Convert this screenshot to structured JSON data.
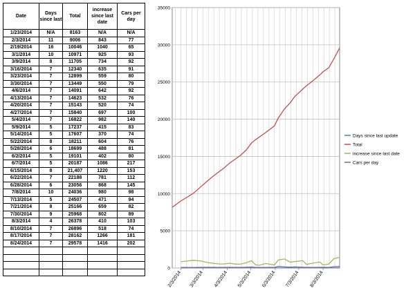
{
  "table": {
    "headers": [
      "Date",
      "Days since last",
      "Total",
      "increase since last date",
      "Cars per day"
    ],
    "rows": [
      [
        "1/23/2014",
        "N/A",
        "8163",
        "N/A",
        "N/A"
      ],
      [
        "2/3/2014",
        "11",
        "9006",
        "843",
        "77"
      ],
      [
        "2/19/2014",
        "16",
        "10046",
        "1040",
        "65"
      ],
      [
        "3/1/2014",
        "10",
        "10971",
        "925",
        "93"
      ],
      [
        "3/9/2014",
        "8",
        "11705",
        "734",
        "92"
      ],
      [
        "3/16/2014",
        "7",
        "12340",
        "635",
        "91"
      ],
      [
        "3/23/2014",
        "7",
        "12899",
        "559",
        "80"
      ],
      [
        "3/30/2014",
        "7",
        "13449",
        "550",
        "79"
      ],
      [
        "4/6/2014",
        "7",
        "14091",
        "642",
        "92"
      ],
      [
        "4/13/2014",
        "7",
        "14623",
        "532",
        "76"
      ],
      [
        "4/20/2014",
        "7",
        "15143",
        "520",
        "74"
      ],
      [
        "4/27/2014",
        "7",
        "15840",
        "697",
        "100"
      ],
      [
        "5/4/2014",
        "7",
        "16822",
        "982",
        "140"
      ],
      [
        "5/9/2014",
        "5",
        "17237",
        "415",
        "83"
      ],
      [
        "5/14/2014",
        "5",
        "17607",
        "370",
        "74"
      ],
      [
        "5/22/2014",
        "8",
        "18211",
        "604",
        "76"
      ],
      [
        "5/28/2014",
        "6",
        "18699",
        "488",
        "81"
      ],
      [
        "6/2/2014",
        "5",
        "19101",
        "402",
        "80"
      ],
      [
        "6/7/2014",
        "5",
        "20187",
        "1086",
        "217"
      ],
      [
        "6/15/2014",
        "8",
        "21,407",
        "1220",
        "153"
      ],
      [
        "6/22/2014",
        "7",
        "22188",
        "781",
        "112"
      ],
      [
        "6/28/2014",
        "6",
        "23056",
        "868",
        "145"
      ],
      [
        "7/8/2014",
        "10",
        "24036",
        "980",
        "98"
      ],
      [
        "7/13/2014",
        "5",
        "24507",
        "471",
        "94"
      ],
      [
        "7/21/2014",
        "8",
        "25166",
        "659",
        "82"
      ],
      [
        "7/30/2014",
        "9",
        "25968",
        "802",
        "89"
      ],
      [
        "8/3/2014",
        "4",
        "26378",
        "410",
        "103"
      ],
      [
        "8/10/2014",
        "7",
        "26896",
        "518",
        "74"
      ],
      [
        "8/17/2014",
        "7",
        "28162",
        "1266",
        "181"
      ],
      [
        "8/24/2014",
        "7",
        "29578",
        "1416",
        "202"
      ],
      [
        "",
        "",
        "",
        "",
        ""
      ],
      [
        "",
        "",
        "",
        "",
        ""
      ],
      [
        "",
        "",
        "",
        "",
        ""
      ],
      [
        "",
        "",
        "",
        "",
        ""
      ]
    ]
  },
  "chart_data": {
    "type": "line",
    "x": [
      "1/23/2014",
      "2/3/2014",
      "2/19/2014",
      "3/1/2014",
      "3/9/2014",
      "3/16/2014",
      "3/23/2014",
      "3/30/2014",
      "4/6/2014",
      "4/13/2014",
      "4/20/2014",
      "4/27/2014",
      "5/4/2014",
      "5/9/2014",
      "5/14/2014",
      "5/22/2014",
      "5/28/2014",
      "6/2/2014",
      "6/7/2014",
      "6/15/2014",
      "6/22/2014",
      "6/28/2014",
      "7/8/2014",
      "7/13/2014",
      "7/21/2014",
      "7/30/2014",
      "8/3/2014",
      "8/10/2014",
      "8/17/2014",
      "8/24/2014"
    ],
    "x_tick_labels": [
      "2/3/2014",
      "3/3/2014",
      "4/3/2014",
      "5/3/2014",
      "6/3/2014",
      "7/3/2014",
      "8/3/2014"
    ],
    "ylim": [
      0,
      35000
    ],
    "y_ticks": [
      0,
      5000,
      10000,
      15000,
      20000,
      25000,
      30000,
      35000
    ],
    "grid": true,
    "legend_position": "right",
    "series": [
      {
        "name": "Days since last update",
        "color": "#4f81bd",
        "values": [
          null,
          11,
          16,
          10,
          8,
          7,
          7,
          7,
          7,
          7,
          7,
          7,
          7,
          5,
          5,
          8,
          6,
          5,
          5,
          8,
          7,
          6,
          10,
          5,
          8,
          9,
          4,
          7,
          7,
          7
        ]
      },
      {
        "name": "Total",
        "color": "#c0504d",
        "values": [
          8163,
          9006,
          10046,
          10971,
          11705,
          12340,
          12899,
          13449,
          14091,
          14623,
          15143,
          15840,
          16822,
          17237,
          17607,
          18211,
          18699,
          19101,
          20187,
          21407,
          22188,
          23056,
          24036,
          24507,
          25166,
          25968,
          26378,
          26896,
          28162,
          29578
        ]
      },
      {
        "name": "increase since last date",
        "color": "#9bbb59",
        "values": [
          null,
          843,
          1040,
          925,
          734,
          635,
          559,
          550,
          642,
          532,
          520,
          697,
          982,
          415,
          370,
          604,
          488,
          402,
          1086,
          1220,
          781,
          868,
          980,
          471,
          659,
          802,
          410,
          518,
          1266,
          1416
        ]
      },
      {
        "name": "Cars per day",
        "color": "#8064a2",
        "values": [
          null,
          77,
          65,
          93,
          92,
          91,
          80,
          79,
          92,
          76,
          74,
          100,
          140,
          83,
          74,
          76,
          81,
          80,
          217,
          153,
          112,
          145,
          98,
          94,
          82,
          89,
          103,
          74,
          181,
          202
        ]
      }
    ]
  }
}
